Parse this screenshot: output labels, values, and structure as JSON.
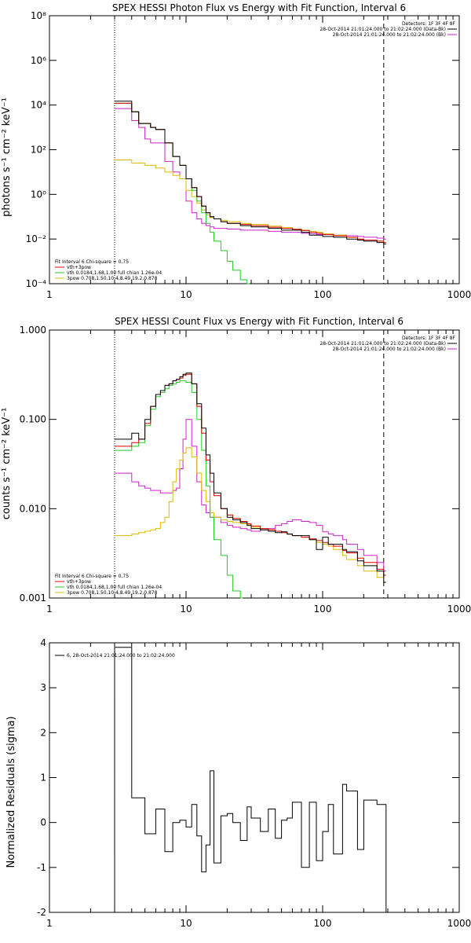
{
  "chart_data": [
    {
      "type": "line",
      "title": "SPEX HESSI Photon Flux vs Energy with Fit Function, Interval 6",
      "ylabel": "photons s⁻¹ cm⁻² keV⁻¹",
      "xlabel": "",
      "xscale": "log",
      "yscale": "log",
      "xlim": [
        1,
        1000
      ],
      "ylim": [
        0.0001,
        100000000
      ],
      "x_ticks": [
        "1",
        "10",
        "100",
        "1000"
      ],
      "y_ticks": [
        "10⁻⁴",
        "10⁻²",
        "10⁰",
        "10²",
        "10⁴",
        "10⁶",
        "10⁸"
      ],
      "legend_position": "top-right",
      "legend": [
        "Detectors: 1F 3F 4F 8F",
        "28-Oct-2014 21:01:24.000 to 21:02:24.000 (Data-Bk)",
        "28-Oct-2014 21:01:24.000 to 21:02:24.000 (Bk)"
      ],
      "fit_legend": [
        "Fit Interval 6   Chi-square = 0.75",
        "vth+3pow",
        "vth 0.0184,1.68,1.00  full chian 1.26e-04",
        "3pow 0.708,1.50,10.4,8.49,19.2,0.878"
      ],
      "vlines": [
        3,
        280
      ],
      "series": [
        {
          "name": "Data-Bk",
          "color": "#000000",
          "x": [
            3,
            3.5,
            4,
            4.5,
            5,
            5.5,
            6,
            7,
            8,
            9,
            10,
            11,
            12,
            13,
            14,
            15,
            16,
            18,
            20,
            25,
            30,
            40,
            50,
            60,
            70,
            80,
            90,
            100,
            120,
            150,
            180,
            200,
            250,
            280
          ],
          "y": [
            15000,
            15000,
            5000,
            1500,
            1500,
            1000,
            800,
            200,
            50,
            20,
            5,
            2,
            0.8,
            0.3,
            0.15,
            0.1,
            0.08,
            0.06,
            0.05,
            0.04,
            0.035,
            0.03,
            0.025,
            0.025,
            0.02,
            0.015,
            0.015,
            0.013,
            0.012,
            0.01,
            0.009,
            0.008,
            0.007,
            0.006
          ]
        },
        {
          "name": "vth+3pow",
          "color": "#dd0000",
          "x": [
            3,
            3.5,
            4,
            4.5,
            5,
            5.5,
            6,
            7,
            8,
            9,
            10,
            11,
            12,
            13,
            14,
            15,
            16,
            18,
            20,
            25,
            30,
            40,
            50,
            60,
            70,
            80,
            90,
            100,
            120,
            150,
            180,
            200,
            250,
            280
          ],
          "y": [
            12000,
            12000,
            5000,
            1500,
            1500,
            1000,
            800,
            200,
            50,
            20,
            5,
            2,
            0.8,
            0.3,
            0.15,
            0.1,
            0.08,
            0.06,
            0.05,
            0.045,
            0.04,
            0.034,
            0.03,
            0.027,
            0.024,
            0.02,
            0.018,
            0.016,
            0.014,
            0.012,
            0.01,
            0.009,
            0.008,
            0.007
          ]
        },
        {
          "name": "vth",
          "color": "#22cc22",
          "x": [
            3,
            3.5,
            4,
            4.5,
            5,
            5.5,
            6,
            7,
            8,
            9,
            10,
            11,
            12,
            13,
            14,
            15,
            16,
            18,
            20,
            22,
            25,
            28
          ],
          "y": [
            12000,
            12000,
            5000,
            1500,
            1500,
            1000,
            800,
            200,
            50,
            20,
            5,
            1.5,
            0.5,
            0.15,
            0.05,
            0.02,
            0.008,
            0.003,
            0.001,
            0.0004,
            0.00015,
            0.0001
          ]
        },
        {
          "name": "3pow",
          "color": "#ddbb00",
          "x": [
            3,
            4,
            5,
            6,
            7,
            8,
            9,
            10,
            11,
            12,
            13,
            14,
            15,
            16,
            18,
            20,
            25,
            30,
            40,
            50,
            60,
            70,
            80,
            90,
            100,
            120,
            150,
            180,
            200,
            250,
            280
          ],
          "y": [
            35,
            25,
            20,
            15,
            10,
            7,
            5,
            1.5,
            0.8,
            0.4,
            0.2,
            0.12,
            0.09,
            0.08,
            0.07,
            0.06,
            0.05,
            0.045,
            0.038,
            0.032,
            0.028,
            0.025,
            0.022,
            0.02,
            0.017,
            0.015,
            0.012,
            0.01,
            0.009,
            0.008,
            0.007
          ]
        },
        {
          "name": "Bk",
          "color": "#cc22cc",
          "x": [
            3,
            3.5,
            4,
            4.5,
            5,
            5.5,
            6,
            7,
            8,
            9,
            10,
            11,
            12,
            13,
            14,
            15,
            16,
            18,
            20,
            25,
            30,
            40,
            50,
            60,
            70,
            80,
            90,
            100,
            120,
            150,
            180,
            200,
            250,
            280
          ],
          "y": [
            7000,
            7000,
            2000,
            1000,
            300,
            200,
            200,
            30,
            10,
            5,
            0.5,
            0.15,
            0.08,
            0.05,
            0.04,
            0.035,
            0.03,
            0.03,
            0.028,
            0.025,
            0.025,
            0.022,
            0.02,
            0.02,
            0.018,
            0.017,
            0.016,
            0.016,
            0.015,
            0.014,
            0.013,
            0.012,
            0.011,
            0.01
          ]
        }
      ]
    },
    {
      "type": "line",
      "title": "SPEX HESSI Count Flux vs Energy with Fit Function, Interval 6",
      "ylabel": "counts s⁻¹ cm⁻² keV⁻¹",
      "xlabel": "",
      "xscale": "log",
      "yscale": "log",
      "xlim": [
        1,
        1000
      ],
      "ylim": [
        0.001,
        1
      ],
      "x_ticks": [
        "1",
        "10",
        "100",
        "1000"
      ],
      "y_ticks": [
        "0.001",
        "0.010",
        "0.100",
        "1.000"
      ],
      "legend_position": "top-right",
      "legend": [
        "Detectors: 1F 3F 4F 8F",
        "28-Oct-2014 21:01:24.000 to 21:02:24.000 (Data-Bk)",
        "28-Oct-2014 21:01:24.000 to 21:02:24.000 (Bk)"
      ],
      "fit_legend": [
        "Fit Interval 6   Chi-square = 0.75",
        "vth+3pow",
        "vth 0.0184,1.68,1.00  full chian 1.26e-04",
        "3pow 0.708,1.50,10.4,8.49,19.2,0.878"
      ],
      "vlines": [
        3,
        280
      ],
      "series": [
        {
          "name": "Data-Bk",
          "color": "#000000",
          "x": [
            3,
            3.5,
            4,
            4.5,
            5,
            5.5,
            6,
            6.5,
            7,
            7.5,
            8,
            8.5,
            9,
            9.5,
            10,
            11,
            12,
            13,
            14,
            15,
            16,
            18,
            20,
            22,
            25,
            28,
            30,
            35,
            40,
            45,
            50,
            55,
            60,
            70,
            80,
            90,
            100,
            110,
            120,
            140,
            150,
            180,
            200,
            250,
            280
          ],
          "y": [
            0.06,
            0.06,
            0.07,
            0.06,
            0.1,
            0.14,
            0.19,
            0.21,
            0.24,
            0.25,
            0.27,
            0.28,
            0.3,
            0.32,
            0.33,
            0.25,
            0.15,
            0.08,
            0.04,
            0.025,
            0.015,
            0.01,
            0.008,
            0.0075,
            0.007,
            0.0065,
            0.006,
            0.0058,
            0.0056,
            0.0054,
            0.0055,
            0.0052,
            0.005,
            0.005,
            0.0045,
            0.0035,
            0.0048,
            0.004,
            0.004,
            0.0035,
            0.0033,
            0.0026,
            0.0023,
            0.002,
            0.0015
          ]
        },
        {
          "name": "vth+3pow",
          "color": "#dd0000",
          "x": [
            3,
            3.5,
            4,
            4.5,
            5,
            5.5,
            6,
            6.5,
            7,
            7.5,
            8,
            8.5,
            9,
            9.5,
            10,
            11,
            12,
            13,
            14,
            15,
            16,
            18,
            20,
            22,
            25,
            28,
            30,
            35,
            40,
            45,
            50,
            55,
            60,
            70,
            80,
            90,
            100,
            110,
            120,
            140,
            150,
            180,
            200,
            250,
            280
          ],
          "y": [
            0.05,
            0.05,
            0.055,
            0.06,
            0.09,
            0.14,
            0.19,
            0.21,
            0.24,
            0.25,
            0.27,
            0.28,
            0.29,
            0.31,
            0.32,
            0.25,
            0.14,
            0.07,
            0.035,
            0.02,
            0.014,
            0.01,
            0.0085,
            0.0078,
            0.0072,
            0.0068,
            0.0064,
            0.006,
            0.0058,
            0.0056,
            0.0054,
            0.0052,
            0.005,
            0.0048,
            0.0046,
            0.0044,
            0.0042,
            0.004,
            0.0038,
            0.0034,
            0.0032,
            0.0028,
            0.0025,
            0.0021,
            0.0018
          ]
        },
        {
          "name": "vth",
          "color": "#22cc22",
          "x": [
            3,
            3.5,
            4,
            4.5,
            5,
            5.5,
            6,
            6.5,
            7,
            7.5,
            8,
            8.5,
            9,
            9.5,
            10,
            11,
            12,
            13,
            14,
            15,
            16,
            18,
            20,
            22,
            25
          ],
          "y": [
            0.045,
            0.045,
            0.05,
            0.055,
            0.085,
            0.13,
            0.18,
            0.2,
            0.22,
            0.24,
            0.25,
            0.26,
            0.27,
            0.27,
            0.26,
            0.2,
            0.1,
            0.045,
            0.018,
            0.008,
            0.0045,
            0.003,
            0.0018,
            0.0012,
            0.001
          ]
        },
        {
          "name": "3pow",
          "color": "#ddbb00",
          "x": [
            3,
            3.5,
            4,
            4.5,
            5,
            5.5,
            6,
            6.5,
            7,
            7.5,
            8,
            8.5,
            9,
            9.5,
            10,
            11,
            12,
            13,
            14,
            15,
            16,
            18,
            20,
            22,
            25,
            28,
            30,
            35,
            40,
            45,
            50,
            55,
            60,
            70,
            80,
            90,
            100,
            110,
            120,
            140,
            150,
            180,
            200,
            250,
            280
          ],
          "y": [
            0.005,
            0.005,
            0.0052,
            0.0054,
            0.0056,
            0.0058,
            0.006,
            0.007,
            0.008,
            0.012,
            0.02,
            0.028,
            0.035,
            0.042,
            0.048,
            0.038,
            0.025,
            0.016,
            0.012,
            0.009,
            0.008,
            0.0075,
            0.0072,
            0.007,
            0.0068,
            0.0066,
            0.0062,
            0.006,
            0.0058,
            0.0056,
            0.0054,
            0.0052,
            0.005,
            0.0048,
            0.0045,
            0.0042,
            0.004,
            0.0038,
            0.0035,
            0.003,
            0.0027,
            0.0023,
            0.002,
            0.0017,
            0.0015
          ]
        },
        {
          "name": "Bk",
          "color": "#cc22cc",
          "x": [
            3,
            3.5,
            4,
            4.5,
            5,
            5.5,
            6,
            6.5,
            7,
            7.5,
            8,
            8.5,
            9,
            9.5,
            10,
            11,
            12,
            13,
            14,
            15,
            16,
            18,
            20,
            22,
            25,
            28,
            30,
            35,
            40,
            45,
            50,
            55,
            60,
            70,
            80,
            90,
            100,
            110,
            120,
            140,
            150,
            180,
            200,
            250,
            280
          ],
          "y": [
            0.025,
            0.025,
            0.02,
            0.018,
            0.017,
            0.016,
            0.016,
            0.015,
            0.015,
            0.015,
            0.016,
            0.017,
            0.028,
            0.06,
            0.1,
            0.05,
            0.02,
            0.011,
            0.009,
            0.008,
            0.008,
            0.007,
            0.0065,
            0.0062,
            0.006,
            0.0058,
            0.0056,
            0.0058,
            0.006,
            0.0065,
            0.0068,
            0.0072,
            0.0075,
            0.0072,
            0.007,
            0.0065,
            0.0055,
            0.0052,
            0.005,
            0.0045,
            0.004,
            0.0035,
            0.003,
            0.0025,
            0.002
          ]
        }
      ]
    },
    {
      "type": "line",
      "title": "",
      "ylabel": "Normalized Residuals (sigma)",
      "xlabel": "",
      "xscale": "log",
      "yscale": "linear",
      "xlim": [
        1,
        1000
      ],
      "ylim": [
        -2,
        4
      ],
      "x_ticks": [
        "1",
        "10",
        "100",
        "1000"
      ],
      "y_ticks": [
        "-2",
        "-1",
        "0",
        "1",
        "2",
        "3",
        "4"
      ],
      "legend_position": "top-left",
      "legend": [
        "6, 28-Oct-2014 21:01:24.000 to 21:02:24.000"
      ],
      "series": [
        {
          "name": "6, 28-Oct-2014 21:01:24.000 to 21:02:24.000",
          "color": "#000000",
          "x": [
            3,
            3.5,
            4,
            4.5,
            5,
            5.5,
            6,
            6.5,
            7,
            7.5,
            8,
            8.5,
            9,
            9.5,
            10,
            11,
            12,
            13,
            14,
            15,
            16,
            18,
            20,
            22,
            25,
            28,
            30,
            35,
            40,
            45,
            50,
            55,
            60,
            70,
            80,
            90,
            100,
            110,
            120,
            140,
            150,
            180,
            200,
            250,
            280
          ],
          "y": [
            3.9,
            3.9,
            0.55,
            0.55,
            -0.25,
            -0.25,
            0.3,
            0.3,
            -0.65,
            -0.65,
            0.0,
            0.0,
            0.05,
            0.05,
            -0.1,
            0.4,
            -0.3,
            -1.1,
            -0.5,
            1.15,
            -0.9,
            0.15,
            0.2,
            0.0,
            -0.4,
            0.35,
            0.1,
            -0.2,
            0.3,
            -0.35,
            0.05,
            0.1,
            0.45,
            -1.0,
            0.45,
            -0.85,
            -0.2,
            0.4,
            -0.7,
            0.85,
            0.7,
            -0.6,
            0.5,
            0.4,
            0.4
          ]
        }
      ]
    }
  ]
}
